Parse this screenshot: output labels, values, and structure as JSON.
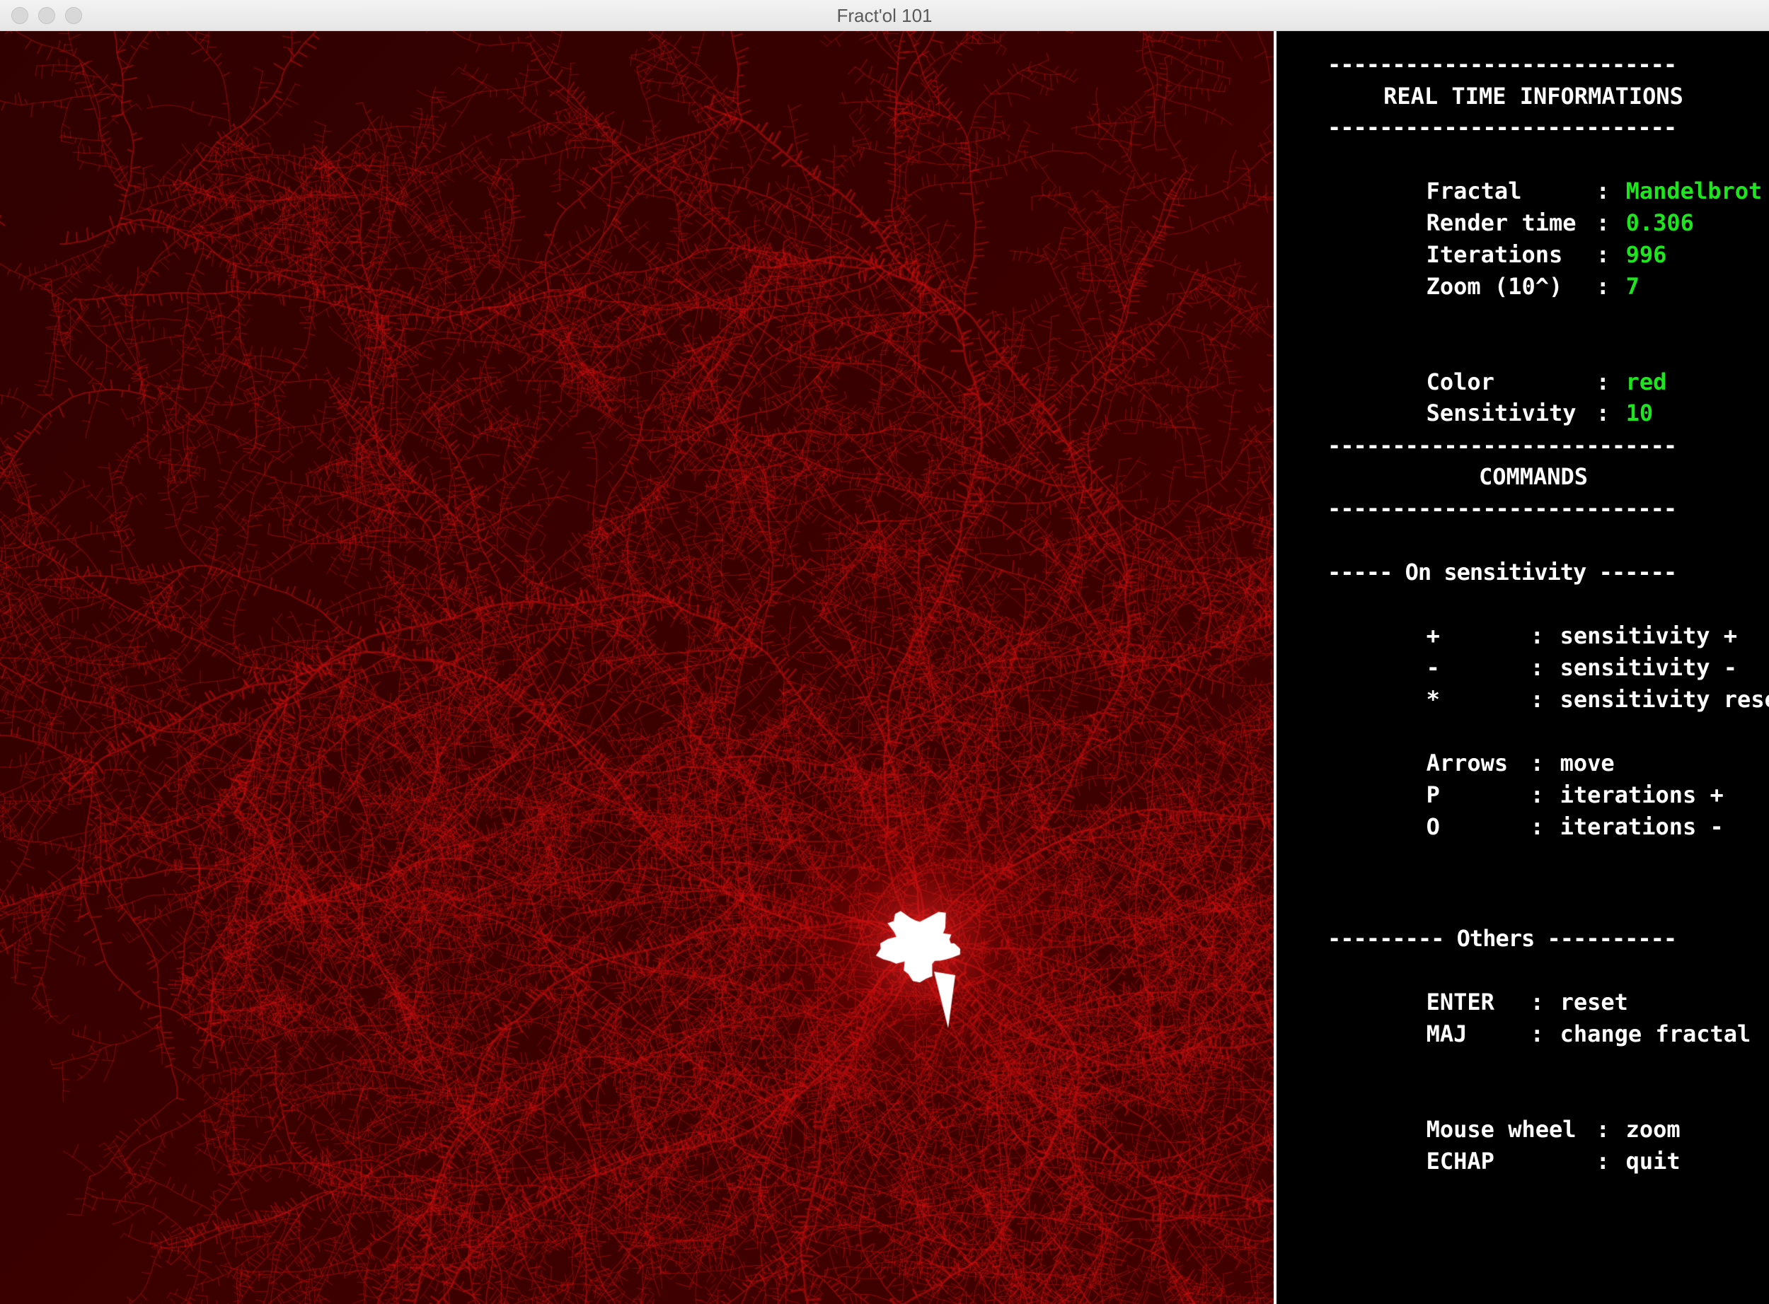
{
  "window": {
    "title": "Fract'ol 101"
  },
  "fractal_view": {
    "palette": "red",
    "colors": {
      "background": "#3a0000",
      "filament": "#d01010",
      "set": "#ffffff"
    }
  },
  "info": {
    "rule": "---------------------------",
    "realtime_title": "REAL TIME INFORMATIONS",
    "fields": [
      {
        "key": "Fractal",
        "sep": ":",
        "value": "Mandelbrot"
      },
      {
        "key": "Render time",
        "sep": ":",
        "value": "0.306"
      },
      {
        "key": "Iterations",
        "sep": ":",
        "value": "996"
      },
      {
        "key": "Zoom (10^)",
        "sep": ":",
        "value": "7"
      }
    ],
    "color_fields": [
      {
        "key": "Color",
        "sep": ":",
        "value": "red"
      },
      {
        "key": "Sensitivity",
        "sep": ":",
        "value": "10"
      }
    ],
    "value_color": "#1ee61e",
    "commands_title": "COMMANDS",
    "sensitivity_header": "----- On sensitivity ------",
    "sensitivity_commands": [
      {
        "key": "+",
        "sep": ":",
        "action": "sensitivity +"
      },
      {
        "key": "-",
        "sep": ":",
        "action": "sensitivity -"
      },
      {
        "key": "*",
        "sep": ":",
        "action": "sensitivity reset"
      }
    ],
    "move_commands": [
      {
        "key": "Arrows",
        "sep": ":",
        "action": "move"
      },
      {
        "key": "P",
        "sep": ":",
        "action": "iterations +"
      },
      {
        "key": "O",
        "sep": ":",
        "action": "iterations -"
      }
    ],
    "others_header": "--------- Others ----------",
    "others_commands": [
      {
        "key": "ENTER",
        "sep": ":",
        "action": "reset"
      },
      {
        "key": "MAJ",
        "sep": ":",
        "action": "change fractal"
      }
    ],
    "mouse_commands": [
      {
        "key": "Mouse wheel",
        "sep": ":",
        "action": "zoom"
      },
      {
        "key": "ECHAP",
        "sep": ":",
        "action": "quit"
      }
    ]
  }
}
